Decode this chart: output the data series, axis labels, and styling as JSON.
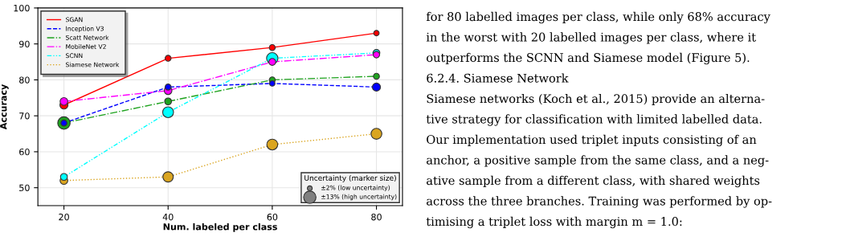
{
  "chart_data": {
    "type": "line",
    "xlabel": "Num. labeled per class",
    "ylabel": "Accuracy",
    "x": [
      20,
      40,
      60,
      80
    ],
    "series": [
      {
        "name": "SGAN",
        "color": "#ff0000",
        "line_style": "solid",
        "values": [
          73,
          86,
          89,
          93
        ]
      },
      {
        "name": "Inception V3",
        "color": "#0000ff",
        "line_style": "dashed",
        "values": [
          68,
          78,
          79,
          78
        ]
      },
      {
        "name": "Scatt Network",
        "color": "#1fa31f",
        "line_style": "dashdot",
        "values": [
          68,
          74,
          80,
          81
        ]
      },
      {
        "name": "MobileNet V2",
        "color": "#ff00ff",
        "line_style": "dashdot",
        "values": [
          74,
          77,
          85,
          87
        ]
      },
      {
        "name": "SCNN",
        "color": "#00ffff",
        "line_style": "dashdotdot",
        "values": [
          53,
          71,
          86,
          87.5
        ]
      },
      {
        "name": "Siamese Network",
        "color": "#daa520",
        "line_style": "dotted",
        "values": [
          52,
          53,
          62,
          65
        ]
      },
      {
        "type": "bubble",
        "marker": "circle",
        "color": "#ff0000",
        "values": [
          73,
          86,
          89,
          93
        ],
        "sizes": [
          5.5,
          3,
          3,
          2.5
        ]
      },
      {
        "type": "bubble",
        "marker": "circle",
        "color": "#0000ff",
        "values": [
          68,
          78,
          79,
          78
        ],
        "sizes": [
          3,
          3,
          2.5,
          5.5
        ]
      },
      {
        "type": "bubble",
        "marker": "circle",
        "color": "#1fa31f",
        "values": [
          68,
          74,
          80,
          81
        ],
        "sizes": [
          13,
          4,
          3,
          3
        ]
      },
      {
        "type": "bubble",
        "marker": "circle",
        "color": "#ff00ff",
        "values": [
          74,
          77,
          85,
          87
        ],
        "sizes": [
          5,
          5,
          4,
          3.5
        ]
      },
      {
        "type": "bubble",
        "marker": "circle",
        "color": "#00ffff",
        "values": [
          53,
          71,
          86,
          87.5
        ],
        "sizes": [
          4,
          10,
          11,
          4
        ]
      },
      {
        "type": "bubble",
        "marker": "circle",
        "color": "#daa520",
        "values": [
          52,
          53,
          62,
          65
        ],
        "sizes": [
          5,
          9,
          10,
          10
        ]
      }
    ],
    "xlim": [
      15,
      85
    ],
    "xticks": [
      20,
      40,
      60,
      80
    ],
    "ylim": [
      45,
      100
    ],
    "yticks": [
      50,
      60,
      70,
      80,
      90,
      100
    ],
    "grid": true,
    "legend": "top left",
    "legend_title": "Uncertainty (marker size)",
    "size_legend": [
      {
        "value": 2,
        "label": "±2% (low uncertainty)"
      },
      {
        "value": 13,
        "label": "±13% (high uncertainty)"
      }
    ],
    "annotations": [
      "for 80 labelled images per class, while only 68% accuracy",
      "in the worst with 20 labelled images per class, where it",
      "outperforms the SCNN and Siamese model (Figure 5).",
      "6.2.4. Siamese Network",
      "Siamese networks (Koch et al., 2015) provide an alterna-",
      "tive strategy for classification with limited labelled data.",
      "Our implementation used triplet inputs consisting of an",
      "anchor, a positive sample from the same class, and a neg-",
      "ative sample from a different class, with shared weights",
      "across the three branches. Training was performed by op-",
      "timising a triplet loss with margin m = 1.0:"
    ]
  }
}
